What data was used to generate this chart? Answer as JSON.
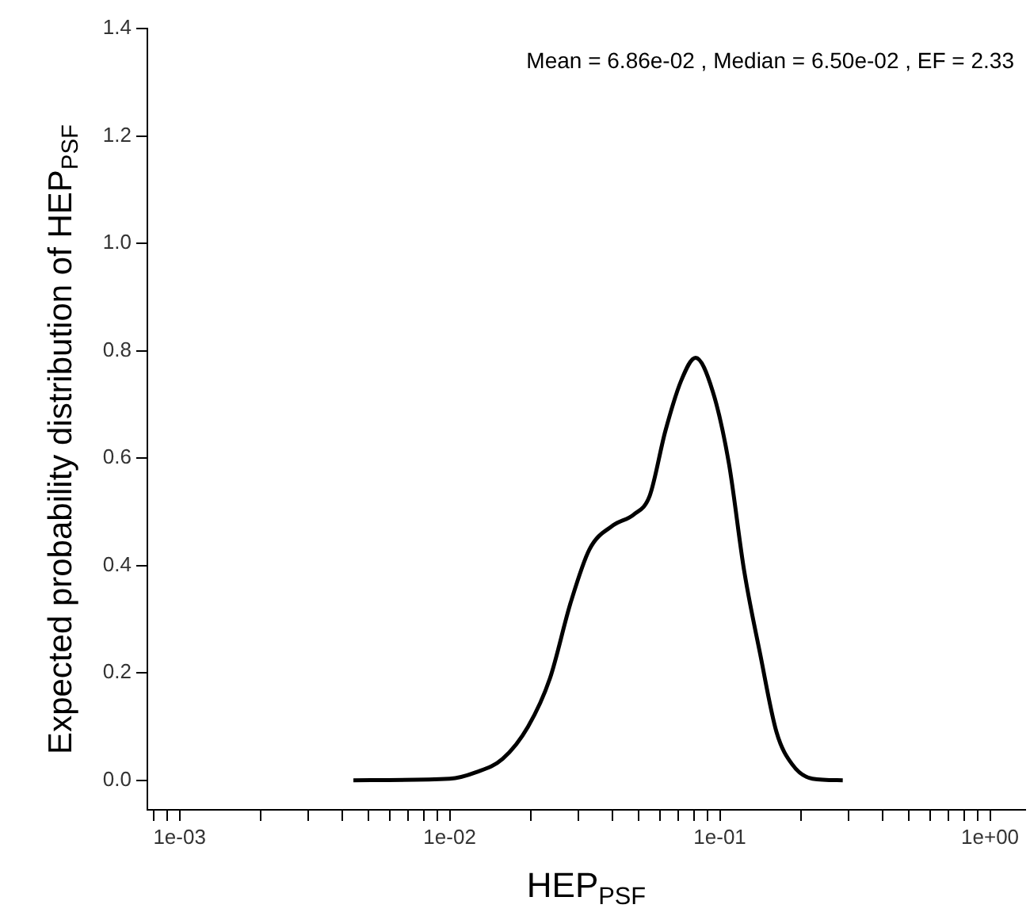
{
  "chart_data": {
    "type": "line",
    "xlabel": "HEP$_{PSF}$",
    "ylabel": "Expected probability distribution of HEP$_{PSF}$",
    "annotations": [
      "Mean =  6.86e-02 , Median =  6.50e-02 , EF =  2.33"
    ],
    "log": "x",
    "grid": false,
    "legend": false,
    "marker": "none",
    "line_style": "solid",
    "xlim": [
      0.00076,
      1.35
    ],
    "ylim": [
      -0.055,
      1.4
    ],
    "xticks": [
      {
        "value": 0.0008,
        "label": null
      },
      {
        "value": 0.0009,
        "label": null
      },
      {
        "value": 0.001,
        "label": "1e-03"
      },
      {
        "value": 0.002,
        "label": null
      },
      {
        "value": 0.003,
        "label": null
      },
      {
        "value": 0.004,
        "label": null
      },
      {
        "value": 0.005,
        "label": null
      },
      {
        "value": 0.006,
        "label": null
      },
      {
        "value": 0.007,
        "label": null
      },
      {
        "value": 0.008,
        "label": null
      },
      {
        "value": 0.009,
        "label": null
      },
      {
        "value": 0.01,
        "label": "1e-02"
      },
      {
        "value": 0.02,
        "label": null
      },
      {
        "value": 0.03,
        "label": null
      },
      {
        "value": 0.04,
        "label": null
      },
      {
        "value": 0.05,
        "label": null
      },
      {
        "value": 0.06,
        "label": null
      },
      {
        "value": 0.07,
        "label": null
      },
      {
        "value": 0.08,
        "label": null
      },
      {
        "value": 0.09,
        "label": null
      },
      {
        "value": 0.1,
        "label": "1e-01"
      },
      {
        "value": 0.2,
        "label": null
      },
      {
        "value": 0.3,
        "label": null
      },
      {
        "value": 0.4,
        "label": null
      },
      {
        "value": 0.5,
        "label": null
      },
      {
        "value": 0.6,
        "label": null
      },
      {
        "value": 0.7,
        "label": null
      },
      {
        "value": 0.8,
        "label": null
      },
      {
        "value": 0.9,
        "label": null
      },
      {
        "value": 1,
        "label": "1e+00"
      }
    ],
    "yticks": [
      {
        "value": 0,
        "label": "0.0"
      },
      {
        "value": 0.2,
        "label": "0.2"
      },
      {
        "value": 0.4,
        "label": "0.4"
      },
      {
        "value": 0.6,
        "label": "0.6"
      },
      {
        "value": 0.8,
        "label": "0.8"
      },
      {
        "value": 1,
        "label": "1.0"
      },
      {
        "value": 1.2,
        "label": "1.2"
      },
      {
        "value": 1.4,
        "label": "1.4"
      }
    ],
    "series": [
      {
        "color": "#000000",
        "x": [
          0.0044,
          0.01,
          0.0125,
          0.0157,
          0.0195,
          0.0235,
          0.028,
          0.0329,
          0.0403,
          0.048,
          0.055,
          0.0628,
          0.072,
          0.0813,
          0.094,
          0.108,
          0.123,
          0.141,
          0.162,
          0.185,
          0.22,
          0.285
        ],
        "values": [
          0,
          0.003,
          0.015,
          0.04,
          0.1,
          0.19,
          0.33,
          0.43,
          0.475,
          0.495,
          0.53,
          0.65,
          0.745,
          0.787,
          0.725,
          0.59,
          0.39,
          0.235,
          0.09,
          0.03,
          0.003,
          0
        ]
      }
    ]
  }
}
